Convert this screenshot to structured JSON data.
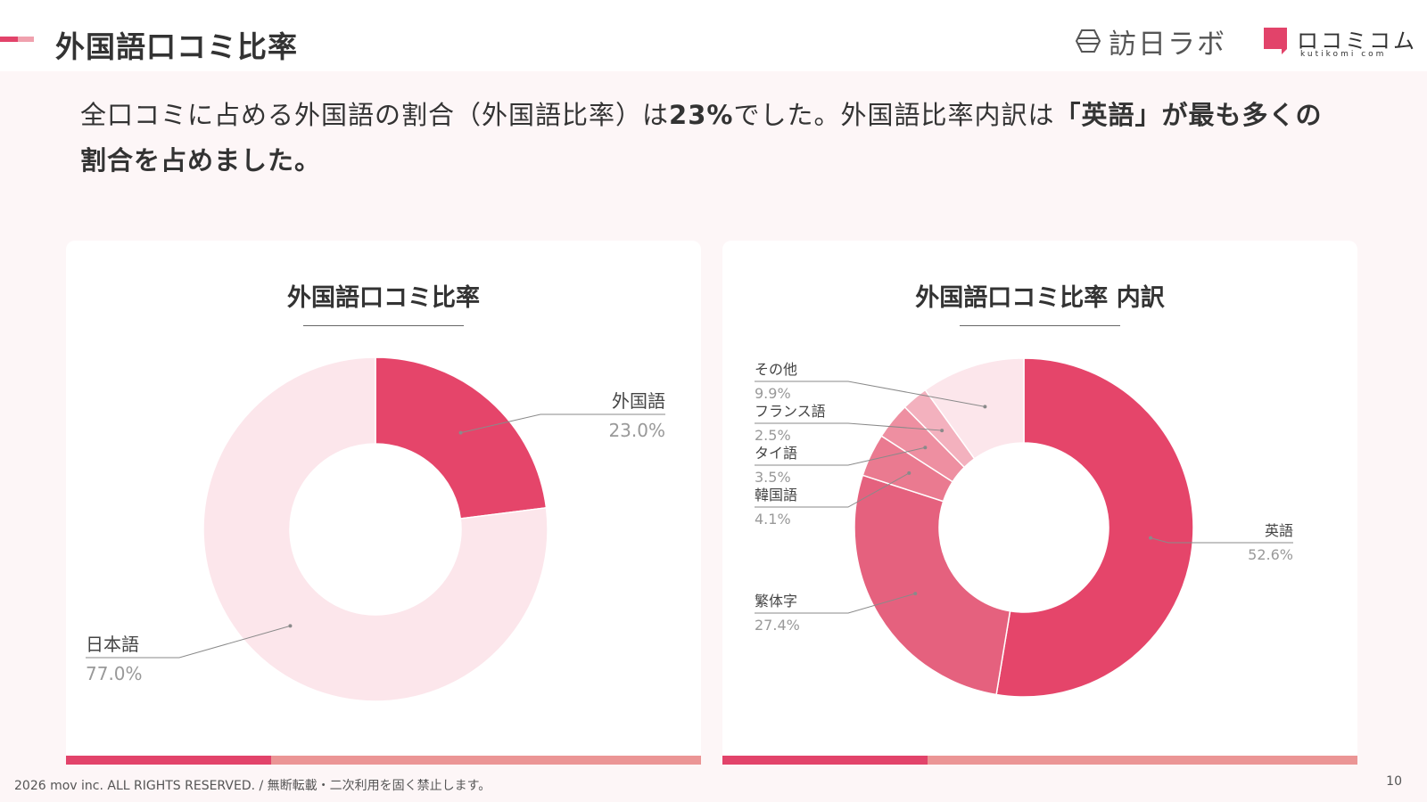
{
  "header": {
    "title": "外国語口コミ比率",
    "accent_colors": [
      "#e2436a",
      "#f0a1ae"
    ],
    "logo_houjin_text": "訪日ラボ",
    "logo_kuchi_main": "ロコミコム",
    "logo_kuchi_sub": "kutikomi com",
    "logo_kuchi_color": "#e2436a"
  },
  "summary": {
    "part1": "全口コミに占める外国語の割合（外国語比率）は",
    "bold1": "23%",
    "part2": "でした。外国語比率内訳は",
    "bold2": "「英語」が最も多くの割合を占めました。"
  },
  "chart_data": [
    {
      "type": "pie",
      "title": "外国語口コミ比率",
      "slices": [
        {
          "label": "外国語",
          "value": 23.0,
          "display": "23.0%",
          "color": "#e5456a"
        },
        {
          "label": "日本語",
          "value": 77.0,
          "display": "77.0%",
          "color": "#fce6eb"
        }
      ]
    },
    {
      "type": "pie",
      "title": "外国語口コミ比率 内訳",
      "slices": [
        {
          "label": "英語",
          "value": 52.6,
          "display": "52.6%",
          "color": "#e5456a"
        },
        {
          "label": "繁体字",
          "value": 27.4,
          "display": "27.4%",
          "color": "#e5617e"
        },
        {
          "label": "韓国語",
          "value": 4.1,
          "display": "4.1%",
          "color": "#ea7a90"
        },
        {
          "label": "タイ語",
          "value": 3.5,
          "display": "3.5%",
          "color": "#ee8fa1"
        },
        {
          "label": "フランス語",
          "value": 2.5,
          "display": "2.5%",
          "color": "#f3b1be"
        },
        {
          "label": "その他",
          "value": 9.9,
          "display": "9.9%",
          "color": "#fce6eb"
        }
      ]
    }
  ],
  "card_bottom_colors": [
    "#e2436a",
    "#eb9595"
  ],
  "footer": {
    "copyright": "2026 mov inc. ALL RIGHTS RESERVED. / 無断転載・二次利用を固く禁止します。",
    "page_number": "10"
  }
}
